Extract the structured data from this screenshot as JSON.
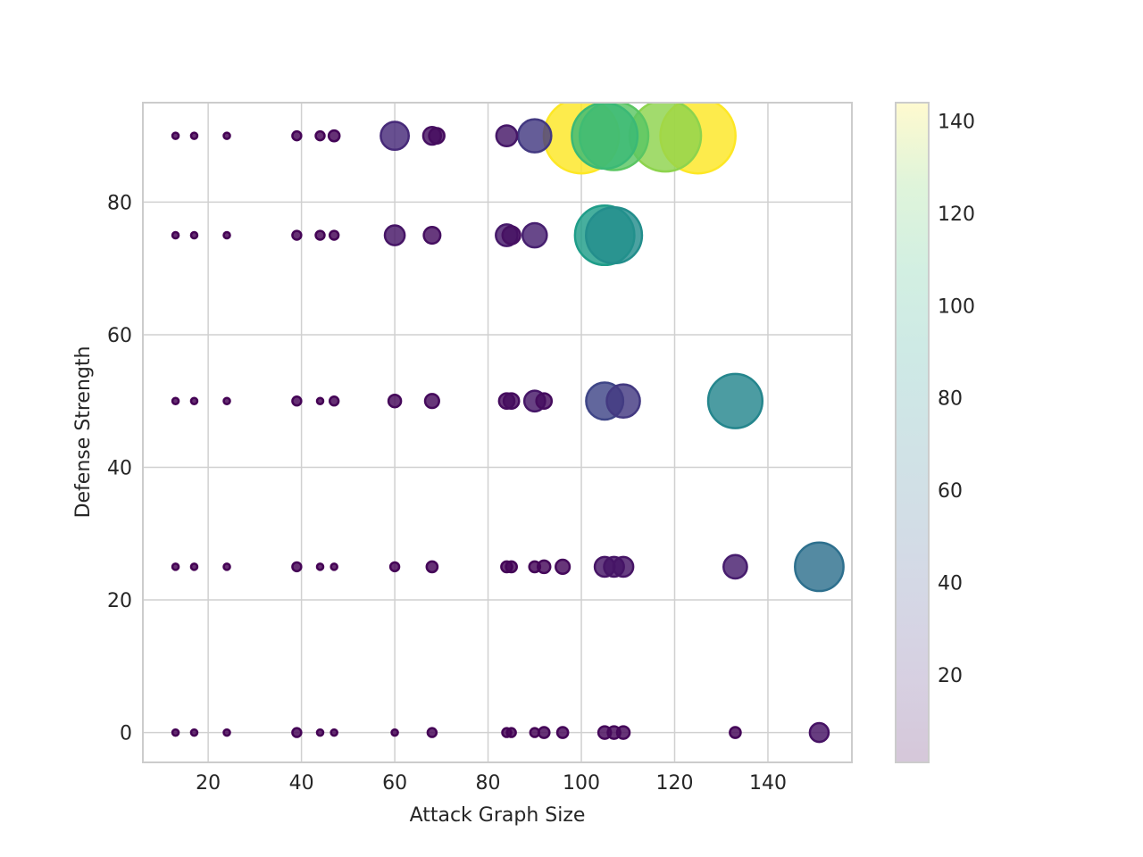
{
  "chart_data": {
    "type": "scatter",
    "title": "",
    "xlabel": "Attack Graph Size",
    "ylabel": "Defense Strength",
    "xlim": [
      6,
      158
    ],
    "ylim": [
      -4.5,
      95
    ],
    "xticks": [
      20,
      40,
      60,
      80,
      100,
      120,
      140
    ],
    "yticks": [
      0,
      20,
      40,
      60,
      80
    ],
    "grid": true,
    "encoding": "color and bubble area both scale with the point value (viridis colormap)",
    "colorbar": {
      "range": [
        1,
        144
      ],
      "ticks": [
        20,
        40,
        60,
        80,
        100,
        120,
        140
      ],
      "colormap": "viridis"
    },
    "points": [
      {
        "x": 13,
        "y": 0,
        "value": 1
      },
      {
        "x": 17,
        "y": 0,
        "value": 1
      },
      {
        "x": 24,
        "y": 0,
        "value": 1
      },
      {
        "x": 39,
        "y": 0,
        "value": 2
      },
      {
        "x": 44,
        "y": 0,
        "value": 1
      },
      {
        "x": 47,
        "y": 0,
        "value": 1
      },
      {
        "x": 60,
        "y": 0,
        "value": 1
      },
      {
        "x": 68,
        "y": 0,
        "value": 2
      },
      {
        "x": 84,
        "y": 0,
        "value": 2
      },
      {
        "x": 85,
        "y": 0,
        "value": 2
      },
      {
        "x": 90,
        "y": 0,
        "value": 2
      },
      {
        "x": 92,
        "y": 0,
        "value": 3
      },
      {
        "x": 96,
        "y": 0,
        "value": 3
      },
      {
        "x": 105,
        "y": 0,
        "value": 4
      },
      {
        "x": 107,
        "y": 0,
        "value": 4
      },
      {
        "x": 109,
        "y": 0,
        "value": 4
      },
      {
        "x": 133,
        "y": 0,
        "value": 3
      },
      {
        "x": 151,
        "y": 0,
        "value": 9
      },
      {
        "x": 13,
        "y": 25,
        "value": 1
      },
      {
        "x": 17,
        "y": 25,
        "value": 1
      },
      {
        "x": 24,
        "y": 25,
        "value": 1
      },
      {
        "x": 39,
        "y": 25,
        "value": 2
      },
      {
        "x": 44,
        "y": 25,
        "value": 1
      },
      {
        "x": 47,
        "y": 25,
        "value": 1
      },
      {
        "x": 60,
        "y": 25,
        "value": 2
      },
      {
        "x": 68,
        "y": 25,
        "value": 3
      },
      {
        "x": 84,
        "y": 25,
        "value": 3
      },
      {
        "x": 85,
        "y": 25,
        "value": 3
      },
      {
        "x": 90,
        "y": 25,
        "value": 3
      },
      {
        "x": 92,
        "y": 25,
        "value": 4
      },
      {
        "x": 96,
        "y": 25,
        "value": 5
      },
      {
        "x": 105,
        "y": 25,
        "value": 10
      },
      {
        "x": 107,
        "y": 25,
        "value": 10
      },
      {
        "x": 109,
        "y": 25,
        "value": 10
      },
      {
        "x": 133,
        "y": 25,
        "value": 14
      },
      {
        "x": 151,
        "y": 25,
        "value": 60
      },
      {
        "x": 13,
        "y": 50,
        "value": 1
      },
      {
        "x": 17,
        "y": 50,
        "value": 1
      },
      {
        "x": 24,
        "y": 50,
        "value": 1
      },
      {
        "x": 39,
        "y": 50,
        "value": 2
      },
      {
        "x": 44,
        "y": 50,
        "value": 1
      },
      {
        "x": 47,
        "y": 50,
        "value": 2
      },
      {
        "x": 60,
        "y": 50,
        "value": 4
      },
      {
        "x": 68,
        "y": 50,
        "value": 5
      },
      {
        "x": 84,
        "y": 50,
        "value": 6
      },
      {
        "x": 85,
        "y": 50,
        "value": 6
      },
      {
        "x": 90,
        "y": 50,
        "value": 11
      },
      {
        "x": 92,
        "y": 50,
        "value": 6
      },
      {
        "x": 105,
        "y": 50,
        "value": 35
      },
      {
        "x": 109,
        "y": 50,
        "value": 28
      },
      {
        "x": 133,
        "y": 50,
        "value": 75
      },
      {
        "x": 13,
        "y": 75,
        "value": 1
      },
      {
        "x": 17,
        "y": 75,
        "value": 1
      },
      {
        "x": 24,
        "y": 75,
        "value": 1
      },
      {
        "x": 39,
        "y": 75,
        "value": 2
      },
      {
        "x": 44,
        "y": 75,
        "value": 2
      },
      {
        "x": 47,
        "y": 75,
        "value": 2
      },
      {
        "x": 60,
        "y": 75,
        "value": 10
      },
      {
        "x": 68,
        "y": 75,
        "value": 7
      },
      {
        "x": 84,
        "y": 75,
        "value": 12
      },
      {
        "x": 85,
        "y": 75,
        "value": 8
      },
      {
        "x": 90,
        "y": 75,
        "value": 15
      },
      {
        "x": 105,
        "y": 75,
        "value": 90
      },
      {
        "x": 107,
        "y": 75,
        "value": 80
      },
      {
        "x": 13,
        "y": 90,
        "value": 1
      },
      {
        "x": 17,
        "y": 90,
        "value": 1
      },
      {
        "x": 24,
        "y": 90,
        "value": 1
      },
      {
        "x": 39,
        "y": 90,
        "value": 2
      },
      {
        "x": 44,
        "y": 90,
        "value": 2
      },
      {
        "x": 47,
        "y": 90,
        "value": 3
      },
      {
        "x": 60,
        "y": 90,
        "value": 20
      },
      {
        "x": 68,
        "y": 90,
        "value": 8
      },
      {
        "x": 69,
        "y": 90,
        "value": 6
      },
      {
        "x": 84,
        "y": 90,
        "value": 11
      },
      {
        "x": 90,
        "y": 90,
        "value": 28
      },
      {
        "x": 100,
        "y": 90,
        "value": 144
      },
      {
        "x": 105,
        "y": 90,
        "value": 110
      },
      {
        "x": 107,
        "y": 90,
        "value": 120
      },
      {
        "x": 118,
        "y": 90,
        "value": 130
      },
      {
        "x": 125,
        "y": 90,
        "value": 144
      }
    ]
  }
}
